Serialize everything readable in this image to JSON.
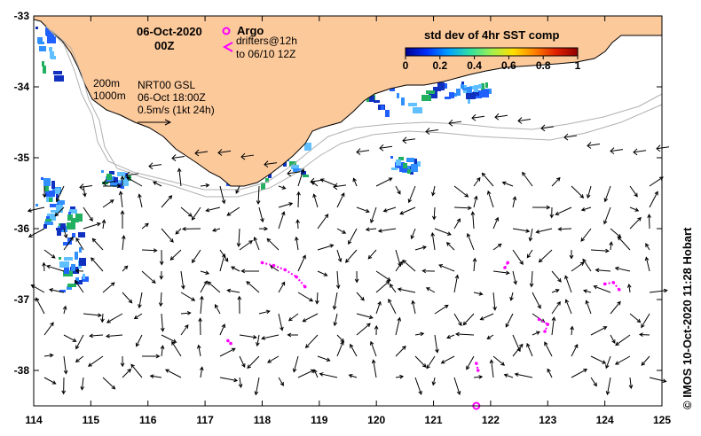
{
  "map": {
    "title_date": "06-Oct-2020",
    "title_time": "00Z",
    "x_ticks": [
      "114",
      "115",
      "116",
      "117",
      "118",
      "119",
      "120",
      "121",
      "122",
      "123",
      "124",
      "125"
    ],
    "y_ticks": [
      "-33",
      "-34",
      "-35",
      "-36",
      "-37",
      "-38"
    ],
    "land_color": "#fcc99b",
    "ocean_color": "#ffffff",
    "argo_color": "#ff00ff",
    "drifter_color": "#ff00ff"
  },
  "legend": {
    "argo_label": "Argo",
    "drifters_label": "drifters@12h",
    "drifters_sub": "to 06/10 12Z",
    "depth_200": "200m",
    "depth_1000": "1000m",
    "product": "NRT00 GSL",
    "product_time": "06-Oct 18:00Z",
    "scale_label": "0.5m/s (1kt 24h)"
  },
  "colorbar": {
    "title": "std dev of 4hr SST comp",
    "ticks": [
      "0",
      "0.2",
      "0.4",
      "0.6",
      "0.8",
      "1"
    ],
    "colors": [
      "#000090",
      "#0030ff",
      "#00a0ff",
      "#30e0a0",
      "#a0f050",
      "#ffe000",
      "#ff8000",
      "#e02000",
      "#900000"
    ]
  },
  "credit": "© IMOS 10-Oct-2020 11:28 Hobart",
  "argo_floats": [
    {
      "lon": 121.75,
      "lat": -38.5
    }
  ],
  "drifters": [
    {
      "name": "d1",
      "track": [
        [
          118.0,
          -36.48
        ],
        [
          118.2,
          -36.52
        ],
        [
          118.4,
          -36.58
        ],
        [
          118.6,
          -36.68
        ],
        [
          118.75,
          -36.82
        ]
      ]
    },
    {
      "name": "d2",
      "track": [
        [
          122.25,
          -36.55
        ],
        [
          122.3,
          -36.48
        ]
      ]
    },
    {
      "name": "d3",
      "track": [
        [
          124.0,
          -36.78
        ],
        [
          124.15,
          -36.76
        ],
        [
          124.25,
          -36.86
        ]
      ]
    },
    {
      "name": "d4",
      "track": [
        [
          122.85,
          -37.28
        ],
        [
          123.0,
          -37.35
        ],
        [
          122.95,
          -37.45
        ]
      ]
    },
    {
      "name": "d5",
      "track": [
        [
          117.4,
          -37.58
        ],
        [
          117.45,
          -37.62
        ]
      ]
    },
    {
      "name": "d6",
      "track": [
        [
          121.75,
          -37.9
        ],
        [
          121.78,
          -38.0
        ]
      ]
    }
  ]
}
